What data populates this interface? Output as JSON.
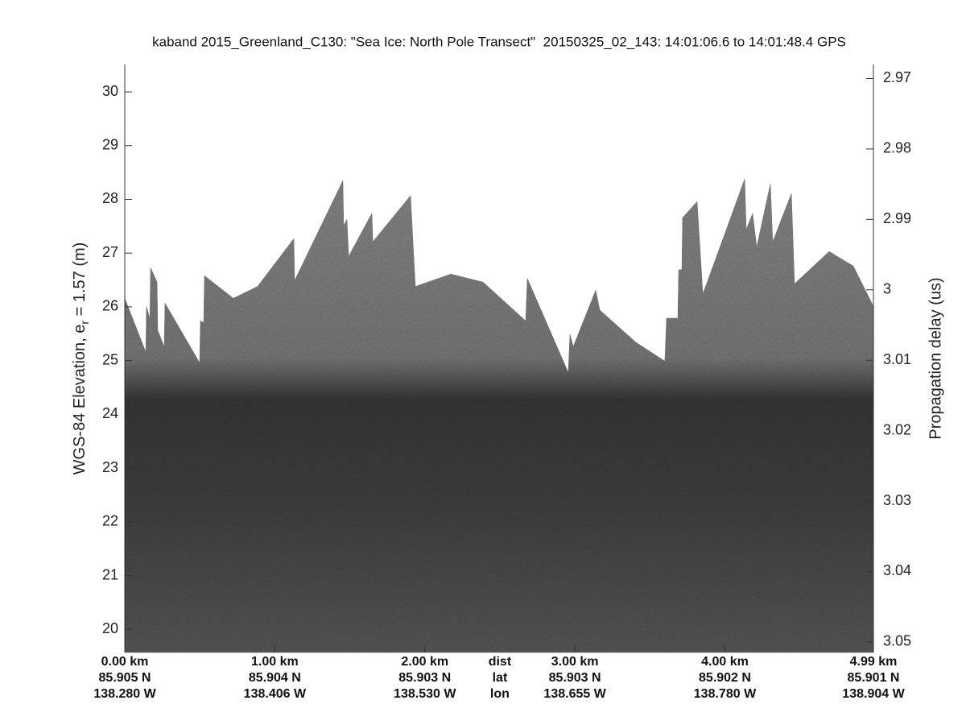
{
  "chart_data": {
    "type": "echogram",
    "title": "kaband 2015_Greenland_C130: \"Sea Ice: North Pole Transect\"  20150325_02_143: 14:01:06.6 to 14:01:48.4 GPS",
    "ylabel_parts": [
      "WGS-84 Elevation, e",
      "r",
      " = 1.57 (m)"
    ],
    "y2label": "Propagation delay (us)",
    "ylim": [
      19.57,
      30.51
    ],
    "yticks": [
      20,
      21,
      22,
      23,
      24,
      25,
      26,
      27,
      28,
      29,
      30
    ],
    "y2lim": [
      3.0515,
      2.968
    ],
    "y2ticks": [
      2.97,
      2.98,
      2.99,
      3,
      3.01,
      3.02,
      3.03,
      3.04,
      3.05
    ],
    "xlim": [
      0,
      4.99
    ],
    "xticks": [
      {
        "value": 0,
        "label": "0.00 km"
      },
      {
        "value": 1,
        "label": "1.00 km"
      },
      {
        "value": 2,
        "label": "2.00 km"
      },
      {
        "value": 3,
        "label": "3.00 km"
      },
      {
        "value": 4,
        "label": "4.00 km"
      },
      {
        "value": 4.99,
        "label": "4.99 km"
      }
    ],
    "lat": [
      "85.905 N",
      "85.904 N",
      "85.903 N",
      "85.903 N",
      "85.902 N",
      "85.901 N"
    ],
    "lon": [
      "138.280 W",
      "138.406 W",
      "138.530 W",
      "138.655 W",
      "138.780 W",
      "138.904 W"
    ],
    "row_labels": [
      "dist",
      "lat",
      "lon"
    ],
    "series": [
      {
        "color": "#6a6a6a",
        "x": [
          0,
          0.14,
          0.145,
          0.167,
          0.172,
          0.215,
          0.22,
          0.263,
          0.268,
          0.499,
          0.504,
          0.526,
          0.531,
          0.724,
          0.885,
          1.127,
          1.132,
          1.454,
          1.459,
          1.481,
          1.492,
          1.647,
          1.653,
          1.905,
          1.921,
          1.937,
          2.173,
          2.388,
          2.672,
          2.683,
          2.956,
          2.967,
          2.989,
          3.139,
          3.166,
          3.407,
          3.6,
          3.611,
          3.686,
          3.692,
          3.713,
          3.718,
          3.815,
          3.853,
          4.132,
          4.142,
          4.185,
          4.212,
          4.303,
          4.319,
          4.443,
          4.464,
          4.695,
          4.856,
          4.99
        ],
        "values": [
          26.16,
          25.16,
          26.01,
          25.78,
          26.73,
          26.46,
          25.56,
          25.26,
          26.07,
          24.96,
          25.74,
          25.71,
          26.58,
          26.16,
          26.38,
          27.27,
          26.49,
          28.35,
          27.51,
          27.63,
          26.94,
          27.74,
          27.21,
          28.07,
          27.21,
          26.38,
          26.61,
          26.46,
          25.74,
          26.53,
          24.78,
          25.49,
          25.26,
          26.31,
          25.94,
          25.34,
          24.99,
          25.79,
          25.79,
          26.69,
          26.69,
          27.66,
          27.96,
          26.24,
          28.38,
          27.44,
          27.74,
          27.11,
          28.29,
          27.21,
          28.11,
          26.43,
          27.03,
          26.76,
          26.01
        ]
      }
    ]
  }
}
